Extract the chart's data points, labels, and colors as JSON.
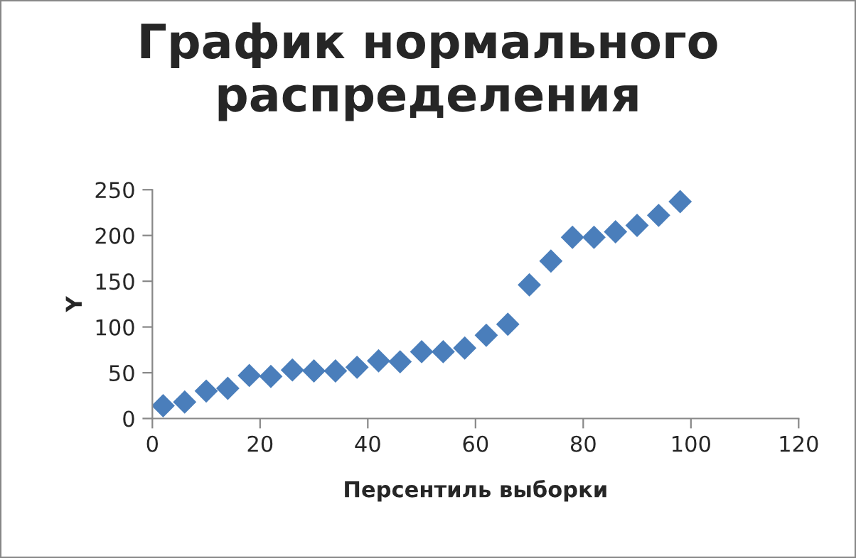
{
  "chart_data": {
    "type": "scatter",
    "title": "График нормального распределения",
    "xlabel": "Персентиль выборки",
    "ylabel": "Y",
    "x": [
      2,
      6,
      10,
      14,
      18,
      22,
      26,
      30,
      34,
      38,
      42,
      46,
      50,
      54,
      58,
      62,
      66,
      70,
      74,
      78,
      82,
      86,
      90,
      94,
      98
    ],
    "series": [
      {
        "color": "#4a7ebb",
        "values": [
          14,
          18,
          30,
          33,
          47,
          46,
          53,
          52,
          52,
          56,
          63,
          62,
          73,
          73,
          77,
          91,
          103,
          146,
          172,
          198,
          198,
          204,
          211,
          222,
          237
        ]
      }
    ],
    "marker": "diamond",
    "xlim": [
      0,
      120
    ],
    "xticks": [
      0,
      20,
      40,
      60,
      80,
      100,
      120
    ],
    "ylim": [
      0,
      250
    ],
    "yticks": [
      0,
      50,
      100,
      150,
      200,
      250
    ],
    "grid": false,
    "legend": false
  }
}
